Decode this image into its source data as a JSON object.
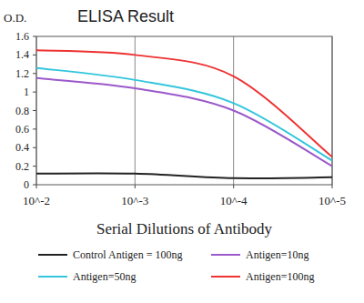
{
  "chart_data": {
    "type": "line",
    "title": "ELISA Result",
    "y_label": "O.D.",
    "x_label": "Serial Dilutions of Antibody",
    "x": [
      0.01,
      0.001,
      0.0001,
      1e-05
    ],
    "series": [
      {
        "name": "Control Antigen = 100ng",
        "color": "#222222",
        "values": [
          0.12,
          0.12,
          0.07,
          0.08
        ]
      },
      {
        "name": "Antigen=10ng",
        "color": "#9b59c9",
        "values": [
          1.15,
          1.04,
          0.8,
          0.2
        ]
      },
      {
        "name": "Antigen=50ng",
        "color": "#33c6dd",
        "values": [
          1.26,
          1.13,
          0.88,
          0.26
        ]
      },
      {
        "name": "Antigen=100ng",
        "color": "#ee3333",
        "values": [
          1.45,
          1.4,
          1.17,
          0.3
        ]
      }
    ],
    "xlim": [
      0.01,
      1e-05
    ],
    "xticks": [
      {
        "value": 0.01,
        "label": "10^-2"
      },
      {
        "value": 0.001,
        "label": "10^-3"
      },
      {
        "value": 0.0001,
        "label": "10^-4"
      },
      {
        "value": 1e-05,
        "label": "10^-5"
      }
    ],
    "ylim": [
      0,
      1.6
    ],
    "yticks": [
      0,
      0.2,
      0.4,
      0.6,
      0.8,
      1,
      1.2,
      1.4,
      1.6
    ],
    "log": "x",
    "grid": true,
    "legend": "bottom"
  }
}
